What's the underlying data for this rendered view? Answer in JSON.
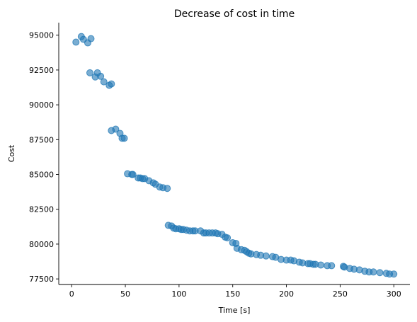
{
  "chart_data": {
    "type": "scatter",
    "title": "Decrease of cost in time",
    "xlabel": "Time [s]",
    "ylabel": "Cost",
    "xlim": [
      -12,
      315
    ],
    "ylim": [
      77100,
      95900
    ],
    "xticks": [
      0,
      50,
      100,
      150,
      200,
      250,
      300
    ],
    "yticks": [
      77500,
      80000,
      82500,
      85000,
      87500,
      90000,
      92500,
      95000
    ],
    "grid": false,
    "color": "#1f77b4",
    "x": [
      4,
      9,
      11,
      15,
      18,
      17,
      22,
      24,
      27,
      30,
      35,
      37,
      37,
      41,
      45,
      47,
      49,
      52,
      56,
      57,
      62,
      64,
      66,
      68,
      72,
      76,
      78,
      82,
      85,
      89,
      90,
      93,
      95,
      97,
      100,
      102,
      104,
      107,
      110,
      113,
      115,
      120,
      123,
      125,
      128,
      131,
      134,
      136,
      140,
      143,
      145,
      150,
      153,
      154,
      158,
      161,
      163,
      165,
      167,
      172,
      176,
      181,
      187,
      190,
      195,
      200,
      204,
      207,
      212,
      215,
      220,
      222,
      225,
      227,
      232,
      238,
      242,
      253,
      254,
      259,
      263,
      268,
      273,
      277,
      281,
      287,
      293,
      296,
      300
    ],
    "y": [
      94500,
      94900,
      94700,
      94450,
      94750,
      92300,
      92000,
      92300,
      92050,
      91650,
      91400,
      91500,
      88150,
      88250,
      87950,
      87600,
      87600,
      85050,
      85000,
      85000,
      84750,
      84750,
      84700,
      84700,
      84550,
      84400,
      84300,
      84100,
      84050,
      84000,
      81350,
      81300,
      81150,
      81100,
      81100,
      81050,
      81050,
      81000,
      80950,
      80950,
      80950,
      80950,
      80800,
      80800,
      80800,
      80800,
      80800,
      80750,
      80700,
      80500,
      80450,
      80100,
      80050,
      79700,
      79600,
      79550,
      79450,
      79350,
      79300,
      79250,
      79200,
      79150,
      79100,
      79050,
      78900,
      78850,
      78850,
      78800,
      78700,
      78650,
      78600,
      78600,
      78550,
      78550,
      78500,
      78450,
      78450,
      78400,
      78350,
      78250,
      78200,
      78150,
      78050,
      78000,
      78000,
      77950,
      77900,
      77850,
      77850
    ]
  }
}
